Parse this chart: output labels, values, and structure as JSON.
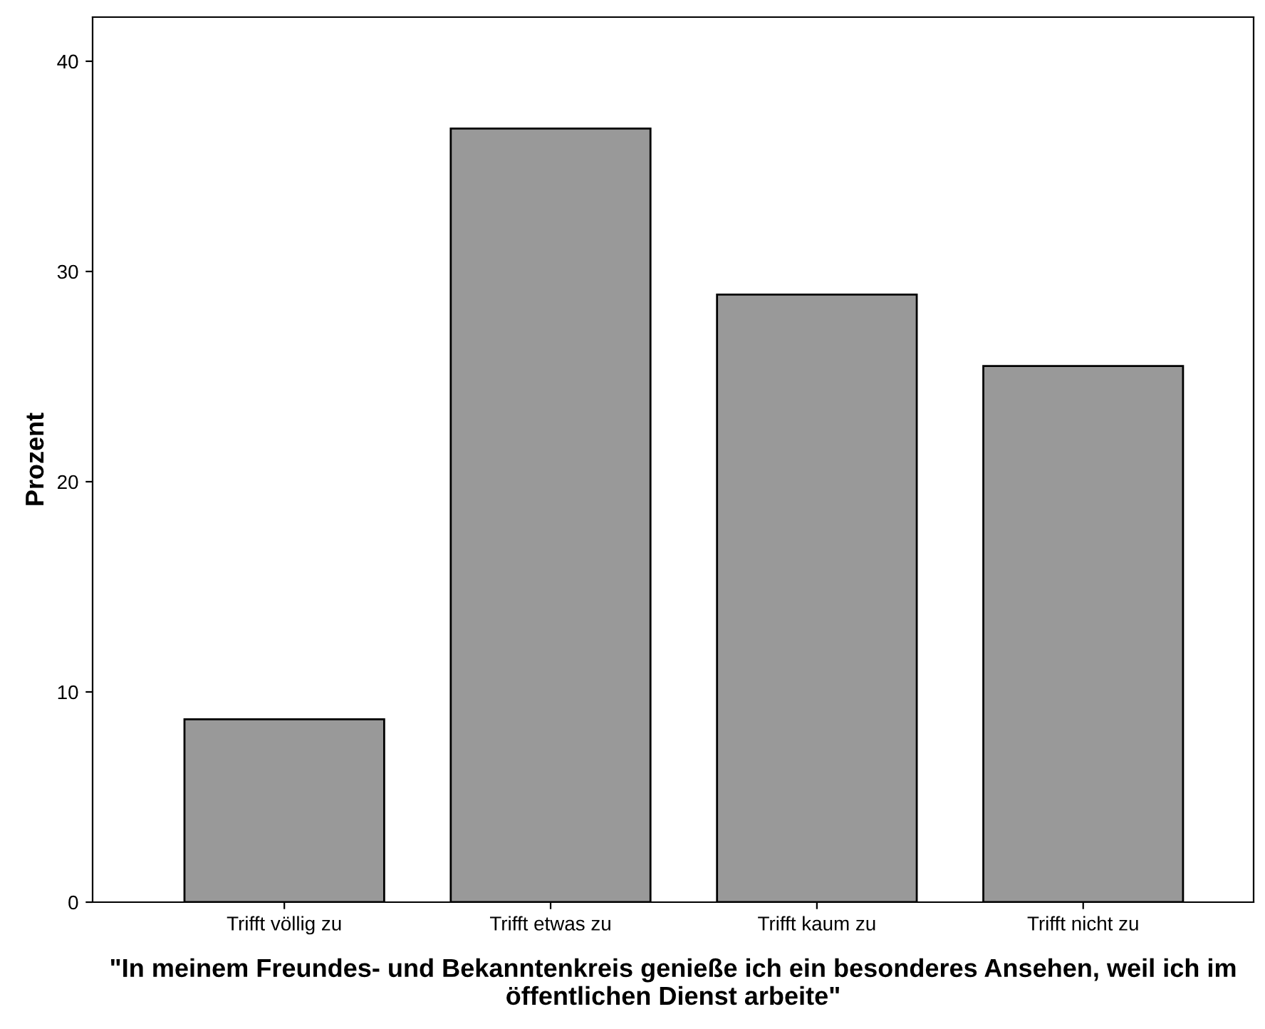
{
  "chart_data": {
    "type": "bar",
    "xlabel": "\"In meinem Freundes- und Bekanntenkreis genieße ich ein besonderes Ansehen, weil ich im öffentlichen Dienst arbeite\"",
    "ylabel": "Prozent",
    "categories": [
      "Trifft völlig zu",
      "Trifft etwas zu",
      "Trifft kaum zu",
      "Trifft nicht zu"
    ],
    "values": [
      8.7,
      36.8,
      28.9,
      25.5
    ],
    "color": "#999999",
    "ylim": [
      0,
      42.1
    ],
    "yticks": [
      0,
      10,
      20,
      30,
      40
    ],
    "grid": false,
    "legend": false
  }
}
